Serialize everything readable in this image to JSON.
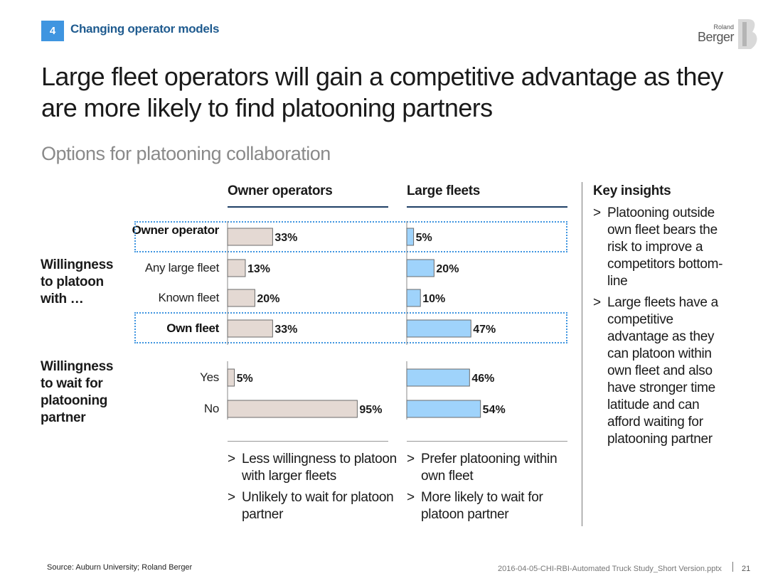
{
  "header": {
    "section_number": "4",
    "section_label": "Changing operator models",
    "logo_top": "Roland",
    "logo_bottom": "Berger"
  },
  "title": "Large fleet operators will gain a competitive advantage as they are more likely to find platooning partners",
  "subtitle": "Options for platooning collaboration",
  "groups": {
    "willingness_platoon": "Willingness to platoon with …",
    "willingness_wait": "Willingness to wait for platooning partner"
  },
  "row_labels": [
    "Owner operator",
    "Any large fleet",
    "Known fleet",
    "Own fleet",
    "Yes",
    "No"
  ],
  "chart_data": [
    {
      "type": "bar",
      "title": "Owner operators",
      "categories": [
        "Owner operator",
        "Any large fleet",
        "Known fleet",
        "Own fleet",
        "Yes",
        "No"
      ],
      "values": [
        33,
        13,
        20,
        33,
        5,
        95
      ],
      "labels": [
        "33%",
        "13%",
        "20%",
        "33%",
        "5%",
        "95%"
      ],
      "color": "#e4d9d3",
      "unit": "%",
      "xlim": [
        0,
        100
      ]
    },
    {
      "type": "bar",
      "title": "Large fleets",
      "categories": [
        "Owner operator",
        "Any large fleet",
        "Known fleet",
        "Own fleet",
        "Yes",
        "No"
      ],
      "values": [
        5,
        20,
        10,
        47,
        46,
        54
      ],
      "labels": [
        "5%",
        "20%",
        "10%",
        "47%",
        "46%",
        "54%"
      ],
      "color": "#9fd3fb",
      "unit": "%",
      "xlim": [
        0,
        100
      ]
    }
  ],
  "owner_bullets": [
    "Less willingness to platoon with larger fleets",
    "Unlikely to wait for platoon partner"
  ],
  "fleet_bullets": [
    "Prefer platooning within own fleet",
    "More likely to wait for platoon partner"
  ],
  "key_insights": {
    "heading": "Key insights",
    "items": [
      "Platooning outside own fleet bears the risk to improve a competitors bottom-line",
      "Large fleets have a competitive advantage as they can platoon within own fleet and also have stronger time latitude and can afford waiting for platooning partner"
    ]
  },
  "footer": {
    "source": "Source: Auburn University; Roland Berger",
    "file": "2016-04-05-CHI-RBI-Automated Truck Study_Short Version.pptx",
    "page": "21"
  }
}
